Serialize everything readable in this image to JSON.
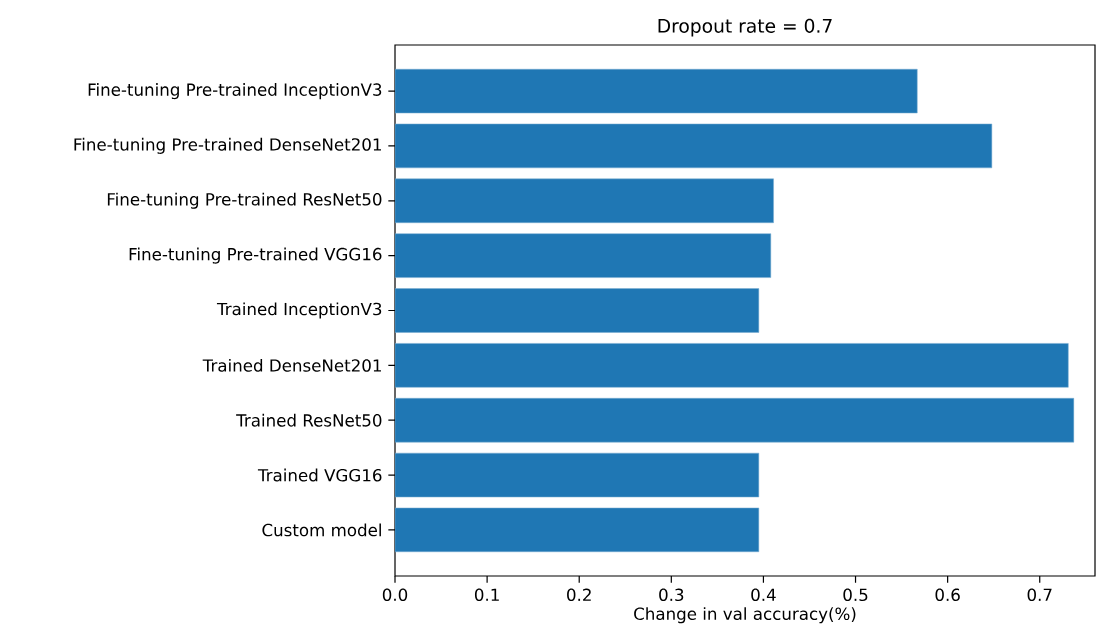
{
  "chart_data": {
    "type": "bar",
    "orientation": "horizontal",
    "title": "Dropout rate = 0.7",
    "xlabel": "Change in val accuracy(%)",
    "categories": [
      "Fine-tuning Pre-trained InceptionV3",
      "Fine-tuning Pre-trained DenseNet201",
      "Fine-tuning Pre-trained ResNet50",
      "Fine-tuning Pre-trained VGG16",
      "Trained InceptionV3",
      "Trained DenseNet201",
      "Trained ResNet50",
      "Trained VGG16",
      "Custom model"
    ],
    "values": [
      0.567,
      0.648,
      0.411,
      0.408,
      0.395,
      0.731,
      0.737,
      0.395,
      0.395
    ],
    "color": "#1f77b4",
    "xlim": [
      0,
      0.76
    ],
    "xticks": [
      {
        "value": 0,
        "label": "0.0"
      },
      0.1,
      0.2,
      0.3,
      0.4,
      0.5,
      0.6,
      0.7
    ],
    "grid": false
  }
}
